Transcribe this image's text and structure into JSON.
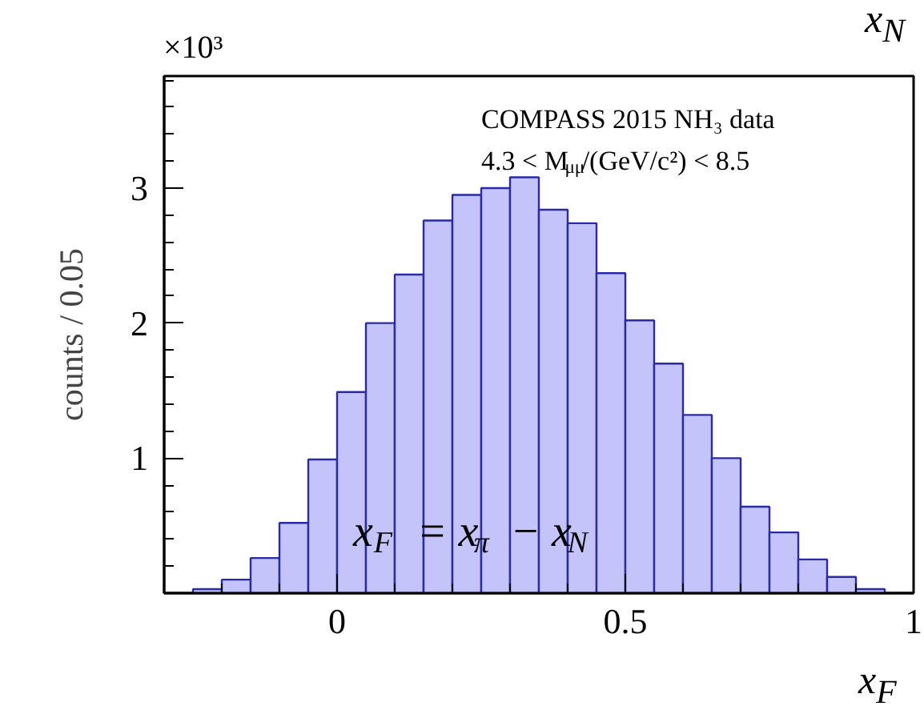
{
  "chart_data": {
    "type": "histogram",
    "xlabel": "x$_{F}$",
    "ylabel": "counts / 0.05",
    "annotations": [
      "COMPASS 2015 NH₃ data",
      "4.3 < M$_{μμ}$/(GeV/c²) < 8.5",
      "x$_{F}$ = x$_{π}$ − x$_{N}$",
      "×10³",
      "x$_{N}$"
    ],
    "bins": [
      -0.25,
      -0.2,
      -0.15,
      -0.1,
      -0.05,
      0,
      0.05,
      0.1,
      0.15,
      0.2,
      0.25,
      0.3,
      0.35,
      0.4,
      0.45,
      0.5,
      0.55,
      0.6,
      0.65,
      0.7,
      0.75,
      0.8,
      0.85,
      0.9,
      0.95
    ],
    "values": [
      0.03,
      0.1,
      0.26,
      0.52,
      0.99,
      1.49,
      2.0,
      2.36,
      2.76,
      2.95,
      3.0,
      3.08,
      2.84,
      2.74,
      2.37,
      2.02,
      1.7,
      1.32,
      1.0,
      0.64,
      0.45,
      0.25,
      0.12,
      0.03
    ],
    "color": "#c4c4fa",
    "xlim": [
      -0.3,
      1.0
    ],
    "ylim": [
      0,
      3.83
    ],
    "xticks": [
      0,
      0.5,
      1
    ],
    "yticks": [
      1,
      2,
      3
    ],
    "grid": false
  }
}
